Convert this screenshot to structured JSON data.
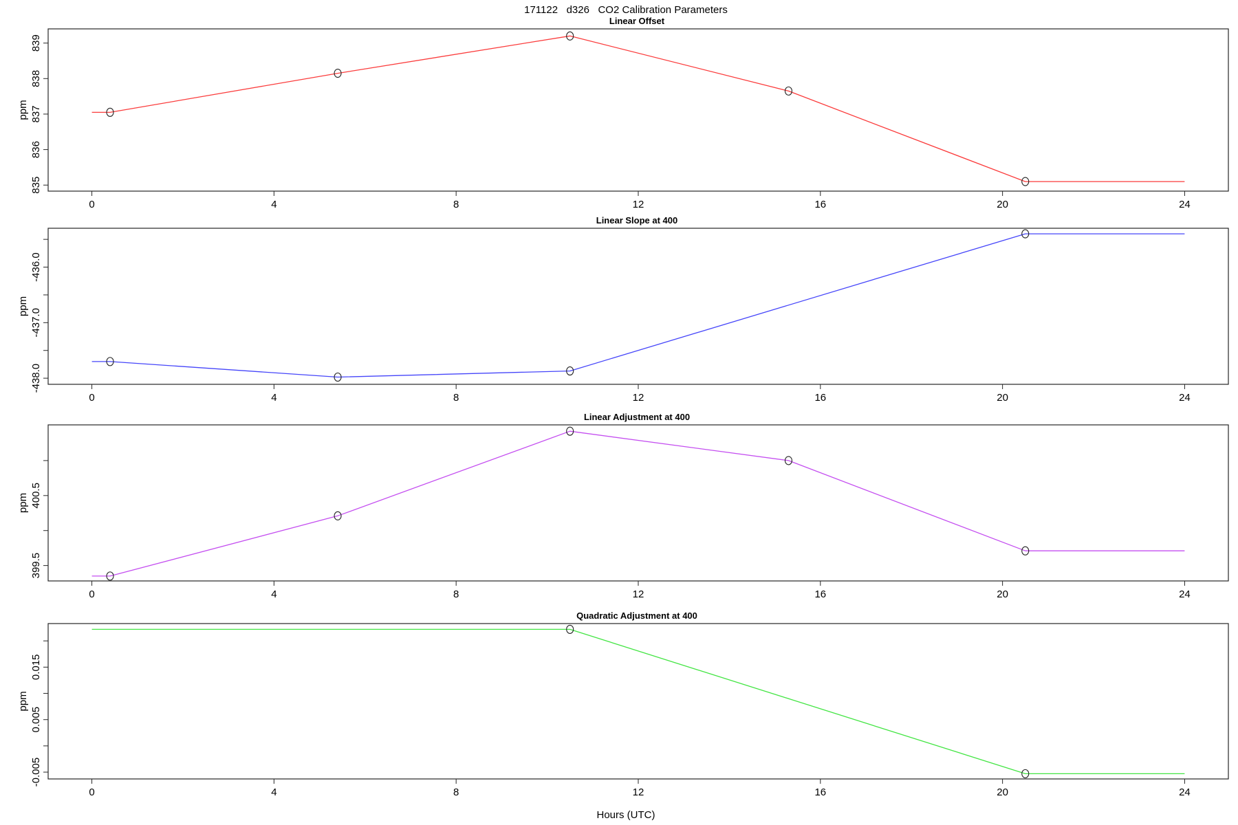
{
  "title": "171122   d326   CO2 Calibration Parameters",
  "figure_background": "#ffffff",
  "frame_color": "#262626",
  "marker": "open-circle",
  "marker_color": "#262626",
  "x_axis": {
    "label": "Hours (UTC)",
    "ticks": [
      0,
      4,
      8,
      12,
      16,
      20,
      24
    ],
    "xlim": [
      -0.96,
      24.96
    ]
  },
  "chart_data": [
    {
      "type": "line",
      "title": "Linear Offset",
      "ylabel": "ppm",
      "line_color": "#fb3b3b",
      "x": [
        0.4,
        5.4,
        10.5,
        15.3,
        20.5
      ],
      "y": [
        837.05,
        838.15,
        839.2,
        837.65,
        835.1
      ],
      "line_extends_to_x": [
        0,
        24
      ],
      "ylim": [
        834.83,
        839.4
      ],
      "yticks": [
        {
          "v": 835,
          "label": "835"
        },
        {
          "v": 836,
          "label": "836"
        },
        {
          "v": 837,
          "label": "837"
        },
        {
          "v": 838,
          "label": "838"
        },
        {
          "v": 839,
          "label": "839"
        }
      ]
    },
    {
      "type": "line",
      "title": "Linear Slope at 400",
      "ylabel": "ppm",
      "line_color": "#4545fa",
      "x": [
        0.4,
        5.4,
        10.5,
        20.5
      ],
      "y": [
        -437.7,
        -437.98,
        -437.87,
        -435.4
      ],
      "line_extends_to_x": [
        0,
        24
      ],
      "ylim": [
        -438.11,
        -435.3
      ],
      "yticks": [
        {
          "v": -438.0,
          "label": "-438.0"
        },
        {
          "v": -437.5,
          "label": ""
        },
        {
          "v": -437.0,
          "label": "-437.0"
        },
        {
          "v": -436.5,
          "label": ""
        },
        {
          "v": -436.0,
          "label": "-436.0"
        },
        {
          "v": -435.5,
          "label": ""
        }
      ]
    },
    {
      "type": "line",
      "title": "Linear Adjustment at 400",
      "ylabel": "ppm",
      "line_color": "#c44ef0",
      "x": [
        0.4,
        5.4,
        10.5,
        15.3,
        20.5
      ],
      "y": [
        399.35,
        400.21,
        401.42,
        401.0,
        399.71
      ],
      "line_extends_to_x": [
        0,
        24
      ],
      "ylim": [
        399.28,
        401.51
      ],
      "yticks": [
        {
          "v": 399.5,
          "label": "399.5"
        },
        {
          "v": 400.0,
          "label": ""
        },
        {
          "v": 400.5,
          "label": "400.5"
        },
        {
          "v": 401.0,
          "label": ""
        }
      ]
    },
    {
      "type": "line",
      "title": "Quadratic Adjustment at 400",
      "ylabel": "ppm",
      "line_color": "#43e543",
      "x": [
        10.5,
        20.5
      ],
      "y": [
        0.0222,
        -0.0053
      ],
      "line_extends_to_x": [
        0,
        24
      ],
      "ylim": [
        -0.0063,
        0.0233
      ],
      "yticks": [
        {
          "v": -0.005,
          "label": "-0.005"
        },
        {
          "v": 0.0,
          "label": ""
        },
        {
          "v": 0.005,
          "label": "0.005"
        },
        {
          "v": 0.01,
          "label": ""
        },
        {
          "v": 0.015,
          "label": "0.015"
        },
        {
          "v": 0.02,
          "label": ""
        }
      ]
    }
  ]
}
